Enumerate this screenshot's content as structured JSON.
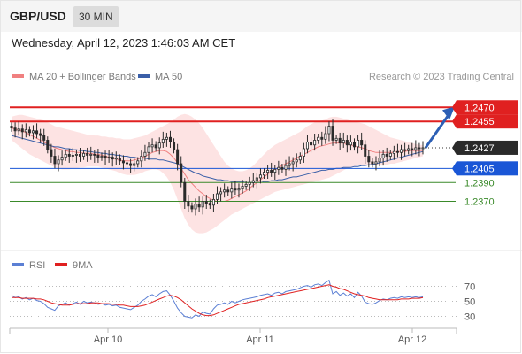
{
  "header": {
    "symbol": "GBP/USD",
    "timeframe": "30 MIN",
    "datetime": "Wednesday, April 12, 2023 1:46:03 AM CET"
  },
  "legend": {
    "ma20_label": "MA 20 + Bollinger Bands",
    "ma50_label": "MA 50",
    "credit": "Research © 2023 Trading Central",
    "ma20_color": "#f08080",
    "ma50_color": "#3a5fa8",
    "rsi_label": "RSI",
    "ma9_label": "9MA",
    "rsi_color": "#5b7fd4",
    "ma9_color": "#e02020"
  },
  "chart_data": {
    "type": "candlestick",
    "ylim": [
      1.233,
      1.249
    ],
    "x_ticks": [
      "Apr 10",
      "Apr 11",
      "Apr 12"
    ],
    "current_price": "1.2427",
    "levels": [
      {
        "label": "1.2470",
        "value": 1.247,
        "kind": "resistance"
      },
      {
        "label": "1.2455",
        "value": 1.2455,
        "kind": "resistance"
      },
      {
        "label": "1.2405",
        "value": 1.2405,
        "kind": "pivot"
      },
      {
        "label": "1.2390",
        "value": 1.239,
        "kind": "support"
      },
      {
        "label": "1.2370",
        "value": 1.237,
        "kind": "support"
      }
    ],
    "colors": {
      "resistance": "#e02020",
      "pivot": "#1a56d6",
      "support": "#3a8a2a",
      "current": "#2a2a2a",
      "candle": "#2a2a2a",
      "bb": "#fde3e3",
      "arrow": "#2c5fb5"
    },
    "closes": [
      1.2448,
      1.2445,
      1.2447,
      1.2444,
      1.2446,
      1.2443,
      1.2445,
      1.2442,
      1.244,
      1.2435,
      1.2425,
      1.2418,
      1.241,
      1.2414,
      1.2417,
      1.242,
      1.2418,
      1.2419,
      1.242,
      1.2418,
      1.2421,
      1.2419,
      1.242,
      1.2419,
      1.2417,
      1.2418,
      1.2416,
      1.2417,
      1.2415,
      1.2416,
      1.2413,
      1.2411,
      1.241,
      1.2408,
      1.241,
      1.2413,
      1.2418,
      1.2422,
      1.2428,
      1.243,
      1.2427,
      1.2432,
      1.2436,
      1.2438,
      1.2433,
      1.2425,
      1.241,
      1.239,
      1.237,
      1.2365,
      1.2362,
      1.2367,
      1.2364,
      1.237,
      1.2368,
      1.2366,
      1.2372,
      1.2378,
      1.238,
      1.2382,
      1.238,
      1.2384,
      1.2382,
      1.2384,
      1.2386,
      1.2388,
      1.239,
      1.2392,
      1.2395,
      1.2398,
      1.2401,
      1.2403,
      1.2401,
      1.2404,
      1.2406,
      1.2404,
      1.2408,
      1.241,
      1.2412,
      1.2414,
      1.2418,
      1.2426,
      1.2433,
      1.243,
      1.2435,
      1.2438,
      1.2436,
      1.2442,
      1.245,
      1.2435,
      1.2437,
      1.2432,
      1.2435,
      1.243,
      1.2433,
      1.2428,
      1.2435,
      1.243,
      1.2418,
      1.2412,
      1.241,
      1.2412,
      1.2416,
      1.242,
      1.2418,
      1.2421,
      1.2423,
      1.2422,
      1.2425,
      1.2424,
      1.2426,
      1.2425,
      1.2427,
      1.2426,
      1.2427
    ],
    "bb_upper": [
      1.246,
      1.2461,
      1.2462,
      1.2462,
      1.2461,
      1.246,
      1.2459,
      1.2458,
      1.2457,
      1.2456,
      1.2454,
      1.2452,
      1.245,
      1.2449,
      1.2448,
      1.2447,
      1.2446,
      1.2445,
      1.2444,
      1.2443,
      1.2442,
      1.2441,
      1.2441,
      1.244,
      1.244,
      1.2439,
      1.2439,
      1.2438,
      1.2438,
      1.2437,
      1.2437,
      1.2436,
      1.2436,
      1.2436,
      1.2437,
      1.2438,
      1.2439,
      1.244,
      1.2442,
      1.2444,
      1.2446,
      1.2448,
      1.245,
      1.2452,
      1.2454,
      1.2457,
      1.246,
      1.2462,
      1.2463,
      1.2462,
      1.246,
      1.2457,
      1.2453,
      1.2448,
      1.2442,
      1.2436,
      1.243,
      1.2424,
      1.2418,
      1.2412,
      1.2408,
      1.2405,
      1.2403,
      1.2402,
      1.2402,
      1.2403,
      1.2405,
      1.2408,
      1.2412,
      1.2416,
      1.242,
      1.2424,
      1.2427,
      1.243,
      1.2432,
      1.2434,
      1.2436,
      1.2438,
      1.244,
      1.2442,
      1.2444,
      1.2447,
      1.245,
      1.2452,
      1.2454,
      1.2455,
      1.2456,
      1.2457,
      1.2459,
      1.246,
      1.246,
      1.2459,
      1.2458,
      1.2457,
      1.2456,
      1.2455,
      1.2454,
      1.2453,
      1.2452,
      1.245,
      1.2448,
      1.2446,
      1.2444,
      1.2442,
      1.244,
      1.2438,
      1.2437,
      1.2436,
      1.2435,
      1.2434,
      1.2433,
      1.2432,
      1.2431,
      1.243,
      1.243
    ],
    "bb_lower": [
      1.2435,
      1.2432,
      1.2429,
      1.2426,
      1.2423,
      1.242,
      1.2418,
      1.2416,
      1.2414,
      1.2412,
      1.241,
      1.2408,
      1.2406,
      1.2405,
      1.2404,
      1.2404,
      1.2404,
      1.2405,
      1.2405,
      1.2406,
      1.2406,
      1.2407,
      1.2407,
      1.2407,
      1.2407,
      1.2406,
      1.2405,
      1.2404,
      1.2403,
      1.2402,
      1.24,
      1.2399,
      1.2398,
      1.2398,
      1.2398,
      1.2399,
      1.24,
      1.2402,
      1.2403,
      1.2404,
      1.2404,
      1.2403,
      1.24,
      1.2396,
      1.239,
      1.2382,
      1.2372,
      1.2362,
      1.2352,
      1.2345,
      1.234,
      1.2337,
      1.2336,
      1.2336,
      1.2337,
      1.2339,
      1.2341,
      1.2344,
      1.2347,
      1.235,
      1.2353,
      1.2356,
      1.2358,
      1.236,
      1.2362,
      1.2364,
      1.2366,
      1.2368,
      1.237,
      1.2372,
      1.2374,
      1.2376,
      1.2378,
      1.238,
      1.2381,
      1.2382,
      1.2383,
      1.2384,
      1.2385,
      1.2386,
      1.2387,
      1.2388,
      1.2389,
      1.239,
      1.2391,
      1.2392,
      1.2393,
      1.2394,
      1.2395,
      1.2397,
      1.2399,
      1.2401,
      1.2403,
      1.2405,
      1.2406,
      1.2407,
      1.2408,
      1.2409,
      1.2409,
      1.2409,
      1.2409,
      1.2408,
      1.2408,
      1.2408,
      1.2409,
      1.241,
      1.241,
      1.2411,
      1.2412,
      1.2413,
      1.2414,
      1.2415,
      1.2416,
      1.2417,
      1.2418
    ],
    "ma20": [
      1.2448,
      1.2447,
      1.2446,
      1.2445,
      1.2443,
      1.2441,
      1.2439,
      1.2437,
      1.2435,
      1.2433,
      1.2431,
      1.2429,
      1.2427,
      1.2426,
      1.2425,
      1.2424,
      1.2423,
      1.2423,
      1.2422,
      1.2422,
      1.2421,
      1.2421,
      1.2421,
      1.242,
      1.242,
      1.2419,
      1.2418,
      1.2417,
      1.2416,
      1.2415,
      1.2414,
      1.2413,
      1.2413,
      1.2413,
      1.2414,
      1.2415,
      1.2416,
      1.2418,
      1.242,
      1.2422,
      1.2423,
      1.2424,
      1.2424,
      1.2423,
      1.242,
      1.2416,
      1.2411,
      1.2405,
      1.2399,
      1.2393,
      1.2389,
      1.2385,
      1.2381,
      1.2378,
      1.2375,
      1.2373,
      1.2371,
      1.237,
      1.237,
      1.237,
      1.2371,
      1.2373,
      1.2375,
      1.2377,
      1.2379,
      1.2381,
      1.2384,
      1.2387,
      1.239,
      1.2393,
      1.2396,
      1.2399,
      1.2402,
      1.2404,
      1.2406,
      1.2408,
      1.241,
      1.2412,
      1.2414,
      1.2416,
      1.2418,
      1.242,
      1.2422,
      1.2424,
      1.2426,
      1.2428,
      1.2429,
      1.243,
      1.2431,
      1.2432,
      1.2432,
      1.2432,
      1.2432,
      1.2431,
      1.243,
      1.2429,
      1.2428,
      1.2427,
      1.2426,
      1.2424,
      1.2423,
      1.2422,
      1.2422,
      1.2422,
      1.2422,
      1.2422,
      1.2422,
      1.2423,
      1.2423,
      1.2423,
      1.2424,
      1.2424,
      1.2424,
      1.2424,
      1.2424
    ],
    "ma50": [
      1.244,
      1.2439,
      1.2438,
      1.2437,
      1.2436,
      1.2435,
      1.2434,
      1.2433,
      1.2432,
      1.2431,
      1.243,
      1.2429,
      1.2428,
      1.2428,
      1.2427,
      1.2426,
      1.2426,
      1.2425,
      1.2425,
      1.2424,
      1.2424,
      1.2423,
      1.2423,
      1.2422,
      1.2422,
      1.2421,
      1.2421,
      1.242,
      1.242,
      1.2419,
      1.2419,
      1.2418,
      1.2418,
      1.2417,
      1.2417,
      1.2416,
      1.2416,
      1.2416,
      1.2415,
      1.2415,
      1.2415,
      1.2414,
      1.2414,
      1.2413,
      1.2412,
      1.2411,
      1.241,
      1.2408,
      1.2406,
      1.2404,
      1.2402,
      1.24,
      1.2399,
      1.2397,
      1.2396,
      1.2395,
      1.2394,
      1.2393,
      1.2393,
      1.2392,
      1.2392,
      1.2391,
      1.2391,
      1.2391,
      1.2391,
      1.239,
      1.239,
      1.239,
      1.239,
      1.239,
      1.2391,
      1.2391,
      1.2392,
      1.2392,
      1.2393,
      1.2393,
      1.2394,
      1.2395,
      1.2396,
      1.2396,
      1.2397,
      1.2398,
      1.2399,
      1.24,
      1.2401,
      1.2402,
      1.2403,
      1.2403,
      1.2404,
      1.2404,
      1.2405,
      1.2405,
      1.2406,
      1.2406,
      1.2406,
      1.2407,
      1.2407,
      1.2408,
      1.2408,
      1.2409,
      1.2409,
      1.241,
      1.2411,
      1.2412,
      1.2413,
      1.2414,
      1.2415,
      1.2416,
      1.2417,
      1.2418,
      1.2419,
      1.242,
      1.2421,
      1.2422,
      1.2423
    ],
    "rsi": {
      "ylim": [
        20,
        80
      ],
      "levels": [
        {
          "label": "70",
          "value": 70
        },
        {
          "label": "50",
          "value": 50
        },
        {
          "label": "30",
          "value": 30
        }
      ],
      "values": [
        58,
        55,
        56,
        53,
        55,
        52,
        54,
        51,
        50,
        47,
        42,
        40,
        38,
        44,
        46,
        48,
        45,
        47,
        49,
        46,
        50,
        48,
        49,
        48,
        46,
        47,
        45,
        46,
        44,
        45,
        42,
        41,
        40,
        39,
        42,
        45,
        50,
        53,
        57,
        59,
        56,
        60,
        63,
        64,
        58,
        50,
        41,
        35,
        30,
        29,
        28,
        32,
        30,
        36,
        34,
        33,
        40,
        45,
        46,
        48,
        46,
        50,
        48,
        50,
        52,
        53,
        54,
        55,
        56,
        58,
        59,
        60,
        58,
        61,
        62,
        60,
        63,
        64,
        65,
        66,
        68,
        70,
        71,
        69,
        72,
        73,
        71,
        75,
        78,
        60,
        63,
        58,
        61,
        57,
        60,
        55,
        62,
        57,
        49,
        47,
        46,
        48,
        51,
        53,
        52,
        54,
        55,
        54,
        56,
        55,
        56,
        55,
        56,
        55,
        56
      ],
      "ma9": [
        55,
        55,
        55,
        54,
        54,
        54,
        54,
        53,
        53,
        52,
        50,
        48,
        47,
        46,
        45,
        45,
        45,
        46,
        47,
        47,
        47,
        47,
        48,
        48,
        48,
        47,
        47,
        47,
        46,
        46,
        45,
        45,
        44,
        43,
        43,
        43,
        44,
        45,
        47,
        49,
        51,
        53,
        55,
        57,
        58,
        57,
        55,
        52,
        48,
        44,
        40,
        37,
        34,
        32,
        31,
        31,
        32,
        34,
        36,
        38,
        40,
        42,
        44,
        46,
        47,
        48,
        49,
        50,
        51,
        52,
        53,
        55,
        56,
        57,
        58,
        59,
        60,
        61,
        62,
        63,
        64,
        65,
        66,
        67,
        68,
        69,
        70,
        71,
        72,
        70,
        69,
        67,
        66,
        64,
        62,
        60,
        59,
        58,
        57,
        55,
        54,
        53,
        52,
        52,
        52,
        52,
        52,
        52,
        53,
        53,
        53,
        54,
        54,
        54,
        55
      ]
    }
  }
}
